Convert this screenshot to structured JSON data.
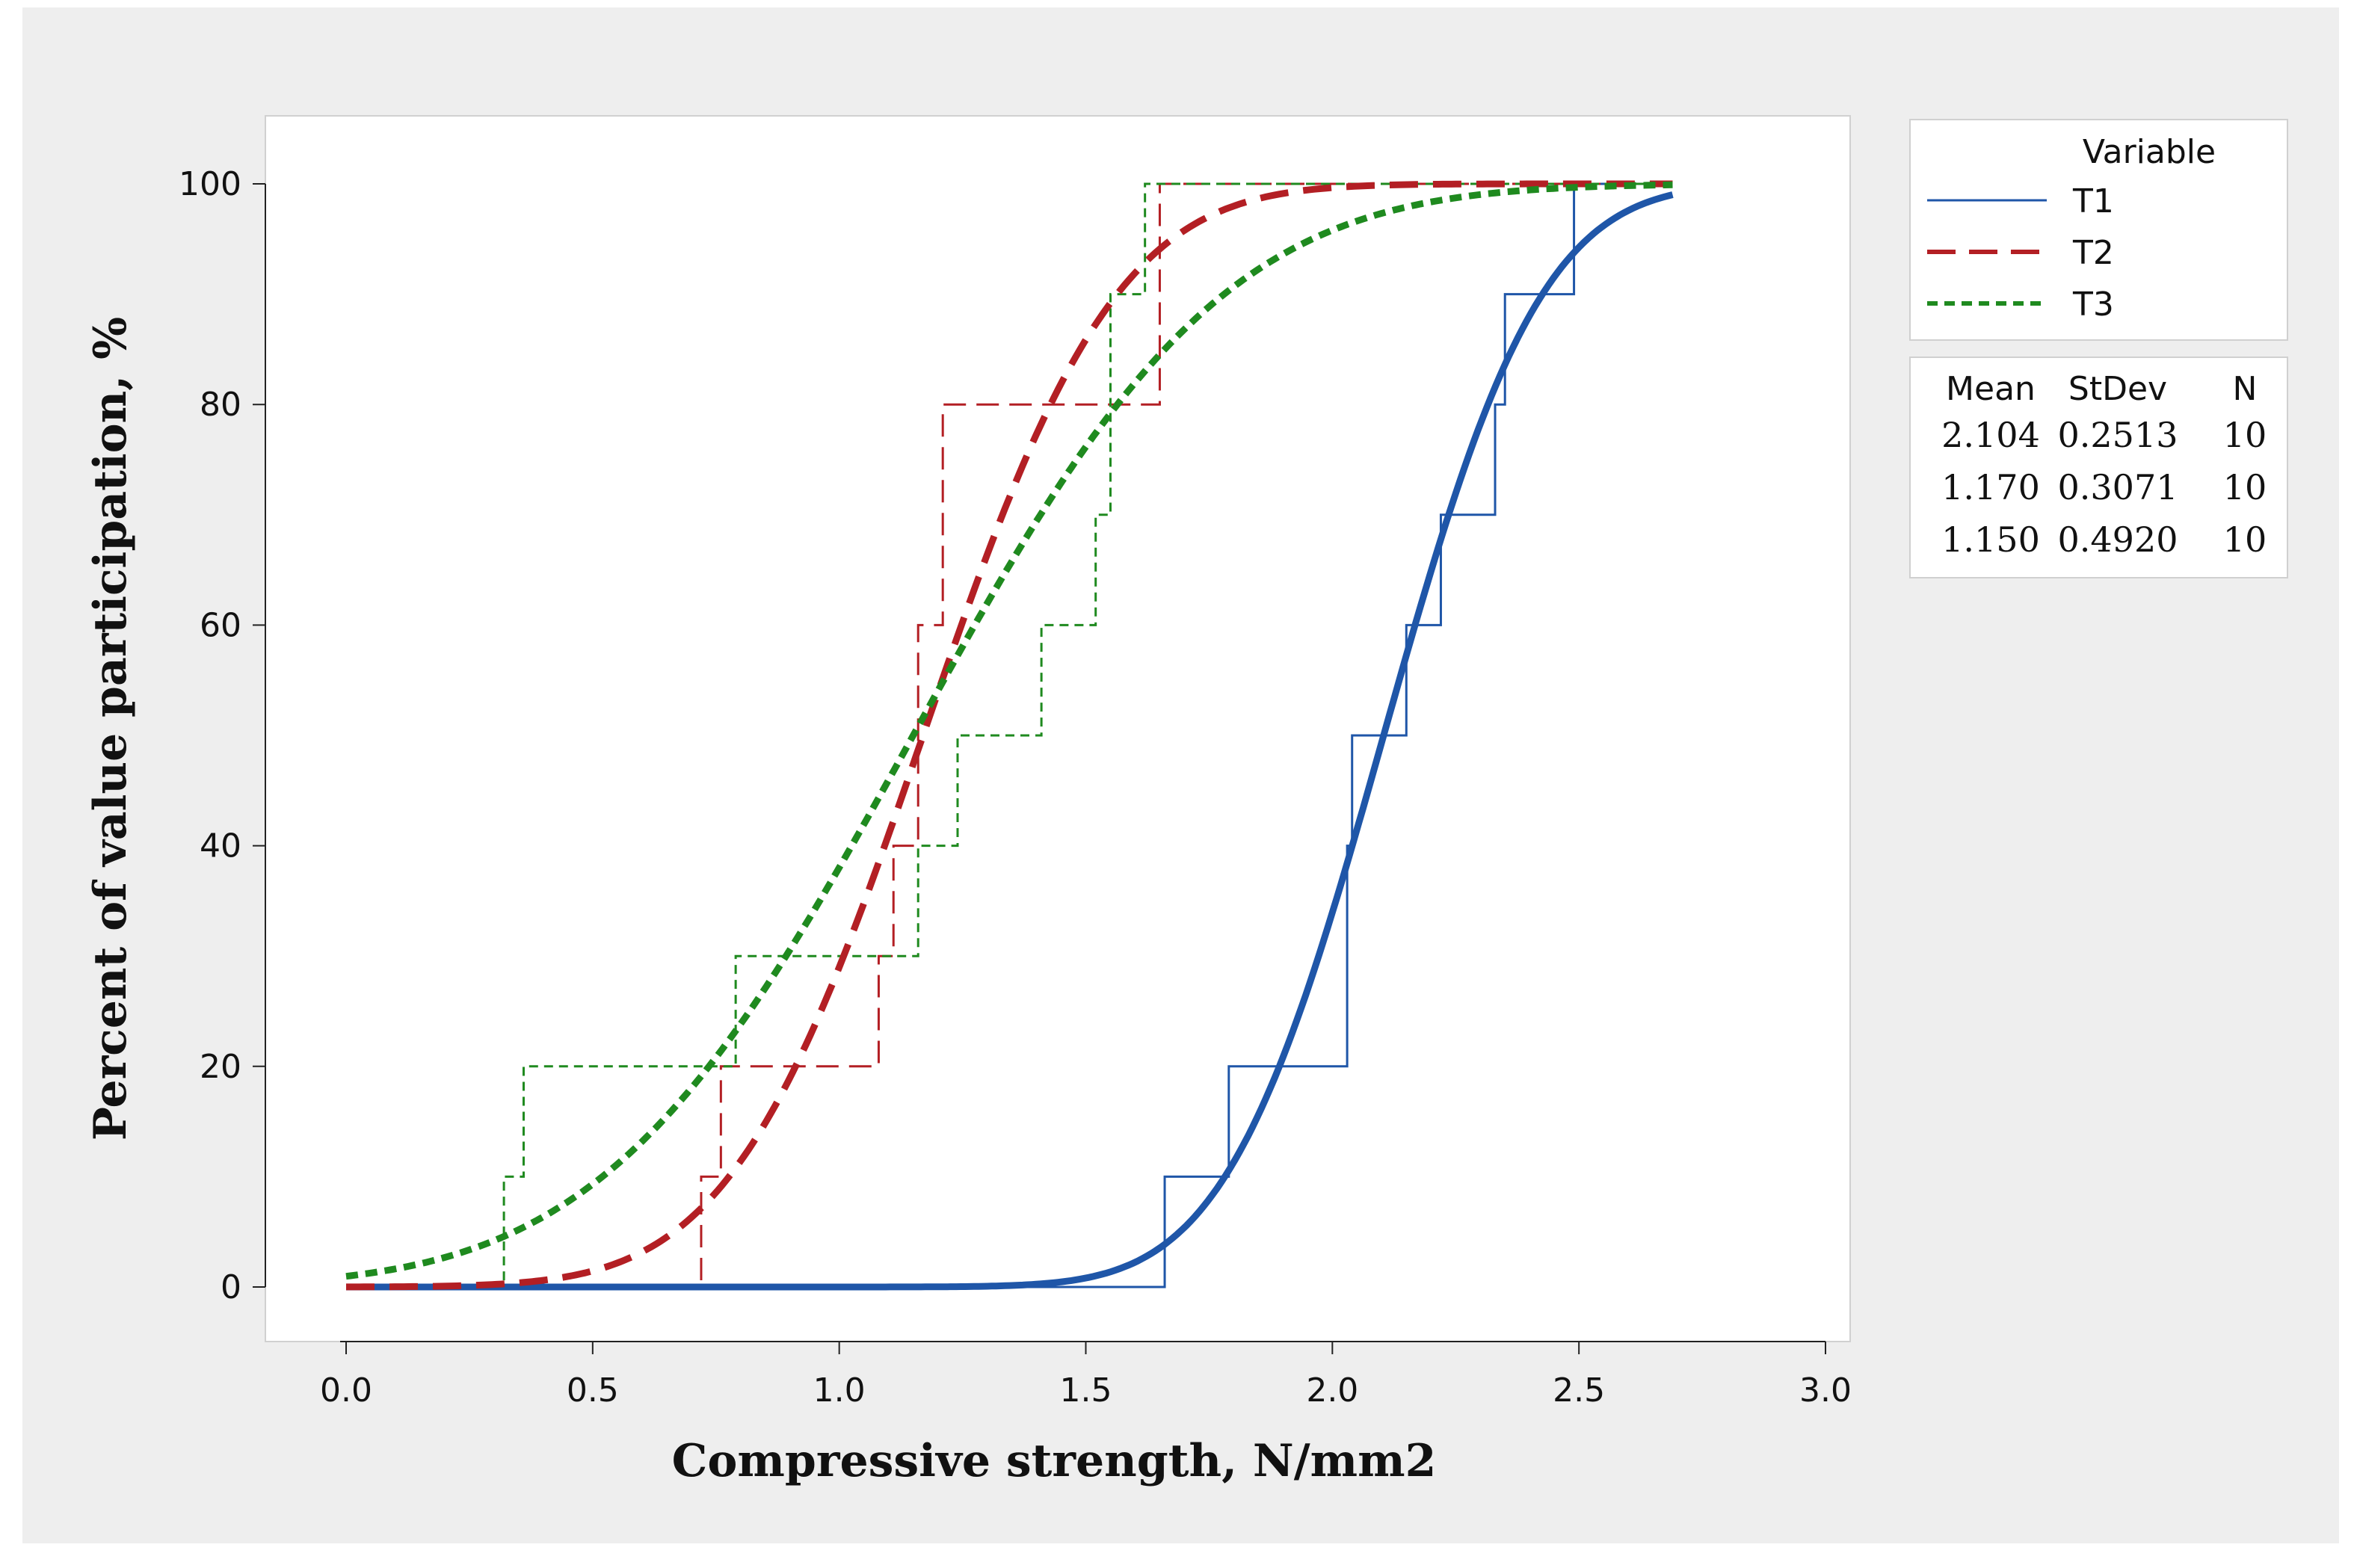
{
  "chart_data": {
    "type": "line",
    "title": "",
    "xlabel": "Compressive strength, N/mm2",
    "ylabel": "Percent of value participation, %",
    "xlim": [
      -0.17,
      3.05
    ],
    "ylim": [
      -6,
      106
    ],
    "xticks": [
      0.0,
      0.5,
      1.0,
      1.5,
      2.0,
      2.5,
      3.0
    ],
    "xtick_labels": [
      "0.0",
      "0.5",
      "1.0",
      "1.5",
      "2.0",
      "2.5",
      "3.0"
    ],
    "yticks": [
      0,
      20,
      40,
      60,
      80,
      100
    ],
    "ytick_labels": [
      "0",
      "20",
      "40",
      "60",
      "80",
      "100"
    ],
    "grid": false,
    "legend": {
      "title": "Variable",
      "position": "right",
      "entries": [
        "T1",
        "T2",
        "T3"
      ],
      "stat_headers": [
        "Mean",
        "StDev",
        "N"
      ]
    },
    "series": [
      {
        "name": "T1",
        "color": "#1f56a8",
        "dash": "solid",
        "mean": 2.104,
        "stdev": 0.2513,
        "n": 10,
        "mean_label": "2.104",
        "stdev_label": "0.2513",
        "n_label": "10",
        "fit_x_range": [
          0.0,
          2.69
        ],
        "empirical_steps": [
          [
            0.0,
            0
          ],
          [
            1.66,
            10
          ],
          [
            1.79,
            20
          ],
          [
            2.03,
            40
          ],
          [
            2.04,
            50
          ],
          [
            2.15,
            60
          ],
          [
            2.22,
            70
          ],
          [
            2.33,
            80
          ],
          [
            2.35,
            90
          ],
          [
            2.49,
            100
          ],
          [
            2.69,
            100
          ]
        ]
      },
      {
        "name": "T2",
        "color": "#b31f24",
        "dash": "long-dash",
        "mean": 1.17,
        "stdev": 0.3071,
        "n": 10,
        "mean_label": "1.170",
        "stdev_label": "0.3071",
        "n_label": "10",
        "fit_x_range": [
          0.0,
          2.69
        ],
        "empirical_steps": [
          [
            0.0,
            0
          ],
          [
            0.72,
            10
          ],
          [
            0.76,
            20
          ],
          [
            1.08,
            30
          ],
          [
            1.11,
            40
          ],
          [
            1.16,
            60
          ],
          [
            1.21,
            80
          ],
          [
            1.65,
            100
          ],
          [
            2.69,
            100
          ]
        ]
      },
      {
        "name": "T3",
        "color": "#1f8a1f",
        "dash": "short-dash",
        "mean": 1.15,
        "stdev": 0.492,
        "n": 10,
        "mean_label": "1.150",
        "stdev_label": "0.4920",
        "n_label": "10",
        "fit_x_range": [
          0.0,
          2.69
        ],
        "empirical_steps": [
          [
            0.0,
            0
          ],
          [
            0.32,
            10
          ],
          [
            0.36,
            20
          ],
          [
            0.79,
            30
          ],
          [
            1.16,
            40
          ],
          [
            1.24,
            50
          ],
          [
            1.41,
            60
          ],
          [
            1.52,
            70
          ],
          [
            1.55,
            90
          ],
          [
            1.62,
            100
          ],
          [
            2.69,
            100
          ]
        ]
      }
    ]
  }
}
